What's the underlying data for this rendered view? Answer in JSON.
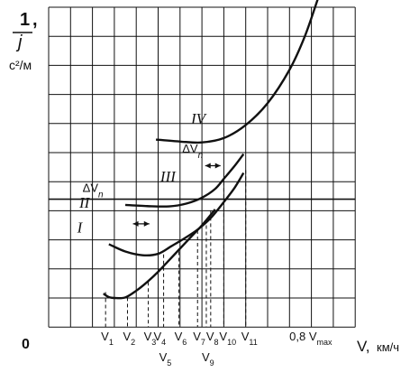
{
  "chart_data": {
    "type": "line",
    "title": "",
    "y_axis_label": {
      "numerator": "1",
      "comma": ",",
      "denominator": "j",
      "unit": "с²/м"
    },
    "x_axis_label": {
      "variable": "V,",
      "unit": "км/ч"
    },
    "origin_label": "0",
    "grid": true,
    "x_tick_labels": [
      {
        "id": "V1",
        "text": "V",
        "sub": "1",
        "x": 2.6
      },
      {
        "id": "V2",
        "text": "V",
        "sub": "2",
        "x": 3.6
      },
      {
        "id": "V3",
        "text": "V",
        "sub": "3",
        "x": 4.55
      },
      {
        "id": "V4",
        "text": "V",
        "sub": "4",
        "x": 5.0
      },
      {
        "id": "V5",
        "text": "V",
        "sub": "5",
        "x": 5.25
      },
      {
        "id": "V6",
        "text": "V",
        "sub": "6",
        "x": 5.95
      },
      {
        "id": "V7",
        "text": "V",
        "sub": "7",
        "x": 6.8
      },
      {
        "id": "V9",
        "text": "V",
        "sub": "9",
        "x": 7.2
      },
      {
        "id": "V8",
        "text": "V",
        "sub": "8",
        "x": 7.4
      },
      {
        "id": "V10",
        "text": "V",
        "sub": "10",
        "x": 8.0
      },
      {
        "id": "V11",
        "text": "V",
        "sub": "11",
        "x": 9.0
      }
    ],
    "vmax_label": {
      "prefix": "0,8 V",
      "sub": "max",
      "x": 11.9
    },
    "series": [
      {
        "name": "I",
        "label_pos": [
          1.3,
          3.25
        ],
        "points": [
          [
            2.5,
            1.15
          ],
          [
            2.75,
            1.03
          ],
          [
            3.0,
            1.0
          ],
          [
            3.5,
            1.02
          ],
          [
            4.0,
            1.25
          ],
          [
            4.5,
            1.55
          ],
          [
            5.0,
            1.9
          ],
          [
            5.5,
            2.3
          ],
          [
            6.0,
            2.7
          ],
          [
            6.5,
            3.1
          ],
          [
            7.0,
            3.5
          ],
          [
            7.5,
            3.95
          ],
          [
            7.6,
            4.05
          ]
        ]
      },
      {
        "name": "II",
        "label_pos": [
          1.4,
          4.1
        ],
        "points": [
          [
            2.75,
            2.85
          ],
          [
            3.5,
            2.6
          ],
          [
            4.3,
            2.47
          ],
          [
            5.0,
            2.52
          ],
          [
            5.6,
            2.78
          ],
          [
            6.2,
            3.05
          ],
          [
            6.8,
            3.35
          ],
          [
            7.4,
            3.75
          ],
          [
            8.0,
            4.3
          ],
          [
            8.5,
            4.8
          ],
          [
            8.9,
            5.3
          ]
        ]
      },
      {
        "name": "III",
        "label_pos": [
          5.1,
          5.0
        ],
        "points": [
          [
            3.5,
            4.2
          ],
          [
            4.5,
            4.16
          ],
          [
            5.5,
            4.15
          ],
          [
            6.3,
            4.25
          ],
          [
            7.0,
            4.45
          ],
          [
            7.6,
            4.75
          ],
          [
            8.0,
            5.1
          ],
          [
            8.5,
            5.55
          ],
          [
            8.9,
            5.95
          ]
        ]
      },
      {
        "name": "IV",
        "label_pos": [
          6.5,
          7.0
        ],
        "points": [
          [
            4.9,
            6.45
          ],
          [
            6.0,
            6.38
          ],
          [
            7.0,
            6.35
          ],
          [
            8.0,
            6.5
          ],
          [
            9.0,
            6.95
          ],
          [
            10.0,
            7.7
          ],
          [
            11.0,
            8.85
          ],
          [
            11.7,
            10.0
          ],
          [
            12.3,
            11.3
          ]
        ]
      }
    ],
    "delta_labels": [
      {
        "text": "ΔV",
        "sub": "n",
        "pos": [
          1.55,
          4.65
        ]
      },
      {
        "text": "ΔV",
        "sub": "n",
        "pos": [
          6.1,
          6.0
        ]
      }
    ],
    "delta_arrows": [
      {
        "from": [
          3.85,
          3.55
        ],
        "to": [
          4.6,
          3.55
        ]
      },
      {
        "from": [
          7.15,
          5.55
        ],
        "to": [
          7.85,
          5.55
        ]
      }
    ],
    "drop_lines": [
      [
        2.6,
        1.2
      ],
      [
        3.6,
        1.02
      ],
      [
        4.55,
        1.55
      ],
      [
        5.0,
        2.1
      ],
      [
        5.25,
        2.5
      ],
      [
        5.95,
        2.6
      ],
      [
        6.8,
        3.33
      ],
      [
        7.2,
        3.5
      ],
      [
        7.4,
        4.0
      ],
      [
        8.0,
        5.0
      ],
      [
        9.0,
        5.4
      ]
    ]
  }
}
